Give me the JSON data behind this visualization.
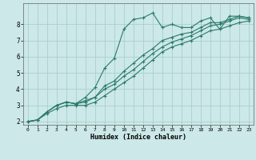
{
  "xlabel": "Humidex (Indice chaleur)",
  "ylabel": "",
  "bg_color": "#cce8e8",
  "grid_color": "#aacece",
  "line_color": "#2a7a6a",
  "xlim": [
    -0.5,
    23.5
  ],
  "ylim": [
    1.8,
    9.3
  ],
  "xticks": [
    0,
    1,
    2,
    3,
    4,
    5,
    6,
    7,
    8,
    9,
    10,
    11,
    12,
    13,
    14,
    15,
    16,
    17,
    18,
    19,
    20,
    21,
    22,
    23
  ],
  "yticks": [
    2,
    3,
    4,
    5,
    6,
    7,
    8
  ],
  "series": [
    {
      "x": [
        0,
        1,
        2,
        3,
        4,
        5,
        6,
        7,
        8,
        9,
        10,
        11,
        12,
        13,
        14,
        15,
        16,
        17,
        18,
        19,
        20,
        21,
        22,
        23
      ],
      "y": [
        2.0,
        2.1,
        2.6,
        3.0,
        3.2,
        3.1,
        3.5,
        4.1,
        5.3,
        5.9,
        7.7,
        8.3,
        8.4,
        8.7,
        7.8,
        8.0,
        7.8,
        7.8,
        8.2,
        8.4,
        7.7,
        8.5,
        8.5,
        8.4
      ]
    },
    {
      "x": [
        0,
        1,
        2,
        3,
        4,
        5,
        6,
        7,
        8,
        9,
        10,
        11,
        12,
        13,
        14,
        15,
        16,
        17,
        18,
        19,
        20,
        21,
        22,
        23
      ],
      "y": [
        2.0,
        2.1,
        2.6,
        3.0,
        3.2,
        3.1,
        3.3,
        3.5,
        4.2,
        4.5,
        5.1,
        5.6,
        6.1,
        6.5,
        7.0,
        7.2,
        7.4,
        7.5,
        7.8,
        8.1,
        8.1,
        8.3,
        8.5,
        8.4
      ]
    },
    {
      "x": [
        0,
        1,
        2,
        3,
        4,
        5,
        6,
        7,
        8,
        9,
        10,
        11,
        12,
        13,
        14,
        15,
        16,
        17,
        18,
        19,
        20,
        21,
        22,
        23
      ],
      "y": [
        2.0,
        2.1,
        2.6,
        3.0,
        3.2,
        3.1,
        3.2,
        3.5,
        4.0,
        4.3,
        4.8,
        5.2,
        5.7,
        6.2,
        6.6,
        6.9,
        7.1,
        7.3,
        7.6,
        7.9,
        8.0,
        8.2,
        8.4,
        8.3
      ]
    },
    {
      "x": [
        0,
        1,
        2,
        3,
        4,
        5,
        6,
        7,
        8,
        9,
        10,
        11,
        12,
        13,
        14,
        15,
        16,
        17,
        18,
        19,
        20,
        21,
        22,
        23
      ],
      "y": [
        2.0,
        2.1,
        2.5,
        2.8,
        3.0,
        3.0,
        3.0,
        3.2,
        3.6,
        4.0,
        4.4,
        4.8,
        5.3,
        5.8,
        6.3,
        6.6,
        6.8,
        7.0,
        7.3,
        7.6,
        7.7,
        7.9,
        8.1,
        8.2
      ]
    }
  ]
}
